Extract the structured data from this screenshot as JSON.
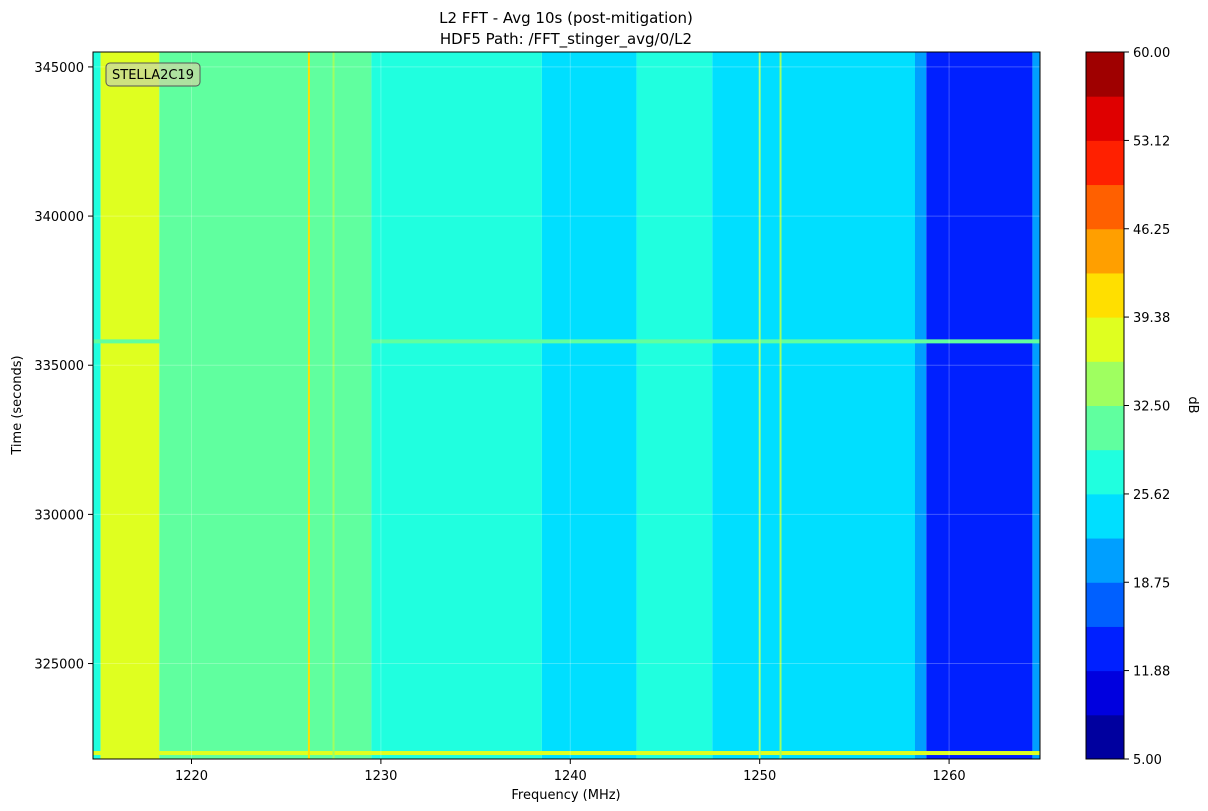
{
  "chart_data": {
    "type": "heatmap",
    "title": "L2 FFT - Avg 10s (post-mitigation)",
    "subtitle": "HDF5 Path: /FFT_stinger_avg/0/L2",
    "xlabel": "Frequency (MHz)",
    "ylabel": "Time (seconds)",
    "colorbar_label": "dB",
    "annotation": "STELLA2C19",
    "xlim": [
      1214.8,
      1264.8
    ],
    "ylim": [
      321800,
      345500
    ],
    "x_ticks": [
      1220,
      1230,
      1240,
      1250,
      1260
    ],
    "y_ticks": [
      325000,
      330000,
      335000,
      340000,
      345000
    ],
    "x_tick_labels": [
      "1220",
      "1230",
      "1240",
      "1250",
      "1260"
    ],
    "y_tick_labels": [
      "325000",
      "330000",
      "335000",
      "340000",
      "345000"
    ],
    "colorbar_range": [
      5.0,
      60.0
    ],
    "colorbar_tick_labels": [
      "60.00",
      "53.12",
      "46.25",
      "39.38",
      "32.50",
      "25.62",
      "18.75",
      "11.88",
      "5.00"
    ],
    "colormap": "jet",
    "levels": 16,
    "grid": true,
    "frequency_bands": [
      {
        "x_start": 1214.8,
        "x_end": 1215.2,
        "level_db": 28
      },
      {
        "x_start": 1215.2,
        "x_end": 1218.3,
        "level_db": 36
      },
      {
        "x_start": 1218.3,
        "x_end": 1229.5,
        "level_db": 32
      },
      {
        "x_start": 1229.5,
        "x_end": 1238.5,
        "level_db": 28
      },
      {
        "x_start": 1238.5,
        "x_end": 1243.5,
        "level_db": 24
      },
      {
        "x_start": 1243.5,
        "x_end": 1247.5,
        "level_db": 28
      },
      {
        "x_start": 1247.5,
        "x_end": 1258.2,
        "level_db": 24
      },
      {
        "x_start": 1258.2,
        "x_end": 1258.8,
        "level_db": 20
      },
      {
        "x_start": 1258.8,
        "x_end": 1264.4,
        "level_db": 12
      },
      {
        "x_start": 1264.4,
        "x_end": 1264.8,
        "level_db": 20
      }
    ],
    "narrowband_lines": [
      {
        "frequency_mhz": 1226.2,
        "level_db": 40
      },
      {
        "frequency_mhz": 1227.5,
        "level_db": 34
      },
      {
        "frequency_mhz": 1250.0,
        "level_db": 34
      },
      {
        "frequency_mhz": 1251.1,
        "level_db": 34
      }
    ],
    "horizontal_events": [
      {
        "time_s": 335800,
        "level_db": 30
      },
      {
        "time_s": 322000,
        "level_db": 38
      }
    ]
  }
}
